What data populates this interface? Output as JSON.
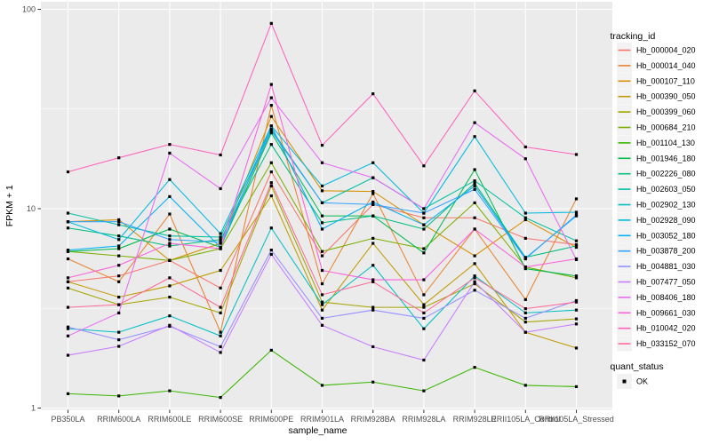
{
  "figure": {
    "panel_bg": "#EBEBEB",
    "grid_color": "#FFFFFF",
    "legend_key_bg": "#F2F2F2",
    "tick_label_color": "#4D4D4D",
    "tick_mark_color": "#333333",
    "point_color": "#000000"
  },
  "chart_data": {
    "type": "line",
    "title": "",
    "xlabel": "sample_name",
    "ylabel": "FPKM + 1",
    "yscale": "log10",
    "yticks": [
      "1",
      "10",
      "100"
    ],
    "ylim": [
      0.97,
      103
    ],
    "grid": true,
    "legend_position": "right",
    "legend_title": "tracking_id",
    "point_legend": {
      "title": "quant_status",
      "item": "OK"
    },
    "x_categories": [
      "PB350LA",
      "RRIM600LA",
      "RRIM600LE",
      "RRIM600SE",
      "RRIM600PE",
      "RRIM901LA",
      "RRIM928BA",
      "RRIM928LA",
      "RRIM928LE",
      "RRII105LA_Control",
      "RRII105LA_Stressed"
    ],
    "series": [
      {
        "name": "Hb_000004_020",
        "color": "#F8766D",
        "values": [
          4.3,
          4.6,
          5.5,
          4.0,
          15.3,
          5.8,
          10.5,
          9.0,
          9.0,
          7.1,
          6.6
        ]
      },
      {
        "name": "Hb_000014_040",
        "color": "#EA8331",
        "values": [
          5.6,
          4.3,
          9.4,
          2.4,
          33.0,
          4.2,
          11.9,
          3.7,
          7.9,
          3.5,
          11.2
        ]
      },
      {
        "name": "Hb_000107_110",
        "color": "#D89000",
        "values": [
          8.6,
          8.8,
          5.5,
          6.7,
          29.0,
          12.3,
          12.2,
          8.3,
          5.8,
          8.8,
          6.4
        ]
      },
      {
        "name": "Hb_000390_050",
        "color": "#C09B00",
        "values": [
          4.3,
          3.6,
          4.1,
          4.9,
          11.6,
          3.1,
          6.7,
          3.3,
          5.3,
          2.4,
          2.0
        ]
      },
      {
        "name": "Hb_000399_060",
        "color": "#A3A500",
        "values": [
          4.0,
          3.3,
          3.6,
          3.0,
          13.0,
          3.4,
          3.2,
          3.2,
          4.2,
          2.7,
          2.8
        ]
      },
      {
        "name": "Hb_000684_210",
        "color": "#7CAE00",
        "values": [
          6.1,
          5.8,
          5.5,
          6.3,
          17.0,
          6.1,
          7.1,
          6.3,
          10.7,
          5.1,
          4.5
        ]
      },
      {
        "name": "Hb_001104_130",
        "color": "#39B600",
        "values": [
          1.18,
          1.15,
          1.22,
          1.13,
          1.95,
          1.3,
          1.35,
          1.22,
          1.6,
          1.3,
          1.28
        ]
      },
      {
        "name": "Hb_001946_180",
        "color": "#00BB4E",
        "values": [
          6.1,
          6.3,
          7.9,
          6.4,
          24.0,
          9.2,
          9.2,
          6.0,
          15.7,
          5.0,
          4.6
        ]
      },
      {
        "name": "Hb_002226_080",
        "color": "#00BF7D",
        "values": [
          8.0,
          7.3,
          6.5,
          7.0,
          21.0,
          8.5,
          9.2,
          7.9,
          13.4,
          5.7,
          6.5
        ]
      },
      {
        "name": "Hb_002603_050",
        "color": "#00C1A3",
        "values": [
          9.5,
          8.3,
          7.3,
          7.2,
          25.0,
          10.7,
          14.3,
          10.0,
          13.8,
          9.0,
          6.9
        ]
      },
      {
        "name": "Hb_002902_130",
        "color": "#00BFC4",
        "values": [
          2.5,
          2.4,
          2.9,
          2.3,
          8.0,
          3.3,
          5.2,
          2.5,
          4.6,
          3.0,
          3.1
        ]
      },
      {
        "name": "Hb_002928_090",
        "color": "#00BAE0",
        "values": [
          8.6,
          7.0,
          14.0,
          7.5,
          26.0,
          13.0,
          17.0,
          9.5,
          23.0,
          9.5,
          9.6
        ]
      },
      {
        "name": "Hb_003052_180",
        "color": "#00B0F6",
        "values": [
          6.2,
          6.5,
          11.5,
          6.4,
          26.0,
          7.9,
          10.8,
          8.3,
          13.0,
          5.65,
          9.2
        ]
      },
      {
        "name": "Hb_003878_200",
        "color": "#35A2FF",
        "values": [
          8.6,
          8.6,
          7.0,
          6.8,
          24.5,
          10.7,
          10.5,
          9.5,
          12.5,
          5.6,
          9.3
        ]
      },
      {
        "name": "Hb_004881_030",
        "color": "#9590FF",
        "values": [
          2.55,
          2.2,
          2.57,
          2.03,
          6.2,
          2.82,
          3.1,
          2.82,
          3.9,
          2.82,
          3.46
        ]
      },
      {
        "name": "Hb_007477_050",
        "color": "#C77CFF",
        "values": [
          1.84,
          2.04,
          2.6,
          1.9,
          5.9,
          2.6,
          2.03,
          1.74,
          4.3,
          2.4,
          2.64
        ]
      },
      {
        "name": "Hb_008406_180",
        "color": "#E76BF3",
        "values": [
          2.3,
          3.0,
          19.0,
          12.6,
          36.0,
          17.0,
          14.3,
          10.0,
          27.0,
          17.8,
          5.55
        ]
      },
      {
        "name": "Hb_009661_030",
        "color": "#FA62DB",
        "values": [
          4.5,
          5.2,
          6.7,
          6.3,
          42.0,
          4.9,
          4.4,
          4.4,
          7.9,
          5.1,
          5.6
        ]
      },
      {
        "name": "Hb_010042_020",
        "color": "#FF62BC",
        "values": [
          15.3,
          18.0,
          21.0,
          18.6,
          85.0,
          20.8,
          37.7,
          16.4,
          39.0,
          20.4,
          18.7
        ]
      },
      {
        "name": "Hb_033152_070",
        "color": "#FF6A98",
        "values": [
          3.2,
          3.3,
          4.5,
          3.2,
          13.5,
          3.7,
          4.3,
          3.0,
          4.5,
          3.15,
          3.4
        ]
      }
    ]
  }
}
